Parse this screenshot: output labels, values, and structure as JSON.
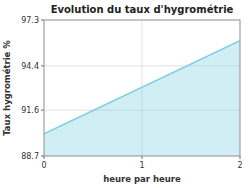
{
  "chart_data": {
    "type": "area",
    "title": "Evolution du taux d'hygrométrie",
    "xlabel": "heure par heure",
    "ylabel": "Taux hygrométrie %",
    "x": [
      0,
      2
    ],
    "values": [
      90.1,
      96.0
    ],
    "color": "#7acfe0",
    "xlim": [
      0,
      2
    ],
    "ylim": [
      88.7,
      97.3
    ],
    "xticks": [
      0,
      1,
      2
    ],
    "yticks": [
      88.7,
      91.6,
      94.4,
      97.3
    ],
    "grid": true
  }
}
